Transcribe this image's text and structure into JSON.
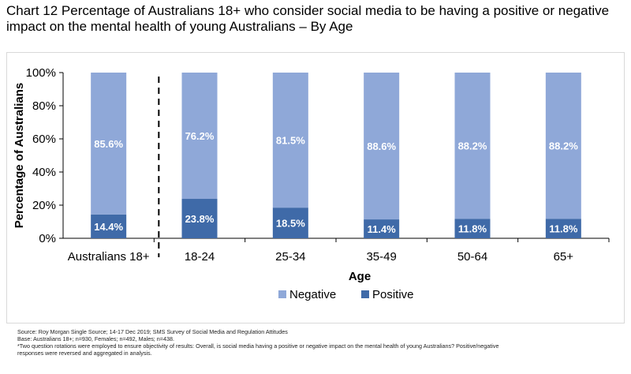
{
  "page": {
    "title_line1": "Chart 12 Percentage of Australians 18+ who consider social media to be having a positive or negative",
    "title_line2": "impact on the mental health of young Australians – By Age"
  },
  "chart_data": {
    "type": "bar",
    "stacked": true,
    "categories": [
      "Australians 18+",
      "18-24",
      "25-34",
      "35-49",
      "50-64",
      "65+"
    ],
    "series": [
      {
        "name": "Positive",
        "values": [
          14.4,
          23.8,
          18.5,
          11.4,
          11.8,
          11.8
        ],
        "labels": [
          "14.4%",
          "23.8%",
          "18.5%",
          "11.4%",
          "11.8%",
          "11.8%"
        ],
        "color": "#3f6aa8"
      },
      {
        "name": "Negative",
        "values": [
          85.6,
          76.2,
          81.5,
          88.6,
          88.2,
          88.2
        ],
        "labels": [
          "85.6%",
          "76.2%",
          "81.5%",
          "88.6%",
          "88.2%",
          "88.2%"
        ],
        "color": "#8fa8d8"
      }
    ],
    "xlabel": "Age",
    "ylabel": "Percentage of Australians",
    "ylim": [
      0,
      100
    ],
    "yticks": [
      0,
      20,
      40,
      60,
      80,
      100
    ],
    "ytick_labels": [
      "0%",
      "20%",
      "40%",
      "60%",
      "80%",
      "100%"
    ],
    "legend": [
      "Negative",
      "Positive"
    ],
    "legend_position": "bottom",
    "grid": false,
    "separator_after_first_category": true
  },
  "footer": {
    "source": "Source: Roy Morgan Single Source; 14-17 Dec 2019; SMS Survey of Social Media and Regulation Attitudes",
    "base": "Base: Australians 18+; n=930, Females; n=492, Males; n=438.",
    "note_line1": "*Two question rotations were employed to ensure objectivity of results: Overall, is social media having a positive or negative impact on the mental health of young Australians? Positive/negative",
    "note_line2": "responses were reversed and aggregated in analysis."
  }
}
